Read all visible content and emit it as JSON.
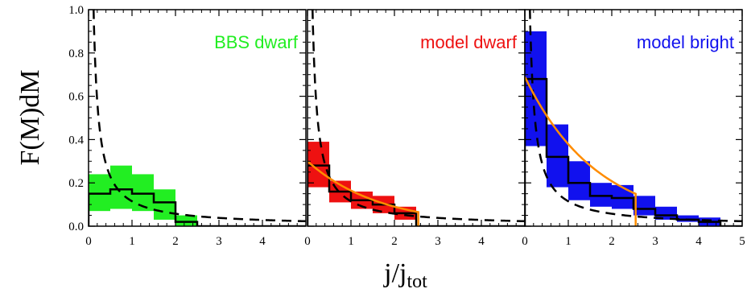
{
  "chart_data": {
    "type": "bar",
    "ylabel": "F(M)dM",
    "xlabel_main": "j/j",
    "xlabel_sub": "tot",
    "ylim": [
      0,
      1.0
    ],
    "yticks": [
      "0.0",
      "0.2",
      "0.4",
      "0.6",
      "0.8",
      "1.0"
    ],
    "yticks_values": [
      0,
      0.2,
      0.4,
      0.6,
      0.8,
      1.0
    ],
    "grid": false,
    "panels": [
      {
        "label": "BBS dwarf",
        "color": "#22ee22",
        "xlim": [
          0,
          5
        ],
        "xticks": [
          "0",
          "1",
          "2",
          "3",
          "4"
        ],
        "xticks_values": [
          0,
          1,
          2,
          3,
          4
        ],
        "bin_width": 0.5,
        "bins": [
          {
            "x": 0.0,
            "value": 0.15,
            "lo": 0.07,
            "hi": 0.24
          },
          {
            "x": 0.5,
            "value": 0.17,
            "lo": 0.08,
            "hi": 0.28
          },
          {
            "x": 1.0,
            "value": 0.15,
            "lo": 0.07,
            "hi": 0.24
          },
          {
            "x": 1.5,
            "value": 0.11,
            "lo": 0.03,
            "hi": 0.17
          },
          {
            "x": 2.0,
            "value": 0.02,
            "lo": 0.0,
            "hi": 0.05
          }
        ],
        "dashed_curve": true
      },
      {
        "label": "model dwarf",
        "color": "#ee1111",
        "xlim": [
          0,
          5
        ],
        "xticks": [
          "0",
          "1",
          "2",
          "3",
          "4"
        ],
        "xticks_values": [
          0,
          1,
          2,
          3,
          4
        ],
        "bin_width": 0.5,
        "bins": [
          {
            "x": 0.0,
            "value": 0.28,
            "lo": 0.18,
            "hi": 0.39
          },
          {
            "x": 0.5,
            "value": 0.16,
            "lo": 0.11,
            "hi": 0.21
          },
          {
            "x": 1.0,
            "value": 0.12,
            "lo": 0.08,
            "hi": 0.16
          },
          {
            "x": 1.5,
            "value": 0.1,
            "lo": 0.06,
            "hi": 0.14
          },
          {
            "x": 2.0,
            "value": 0.06,
            "lo": 0.03,
            "hi": 0.09
          }
        ],
        "fit_a": 0.3,
        "fit_b": 0.6,
        "fit_xmax": 2.55,
        "dashed_curve": true
      },
      {
        "label": "model bright",
        "color": "#1111ee",
        "xlim": [
          0,
          5
        ],
        "xticks": [
          "0",
          "1",
          "2",
          "3",
          "4",
          "5"
        ],
        "xticks_values": [
          0,
          1,
          2,
          3,
          4,
          5
        ],
        "bin_width": 0.5,
        "bins": [
          {
            "x": 0.0,
            "value": 0.68,
            "lo": 0.37,
            "hi": 0.9
          },
          {
            "x": 0.5,
            "value": 0.32,
            "lo": 0.18,
            "hi": 0.47
          },
          {
            "x": 1.0,
            "value": 0.2,
            "lo": 0.12,
            "hi": 0.3
          },
          {
            "x": 1.5,
            "value": 0.14,
            "lo": 0.09,
            "hi": 0.2
          },
          {
            "x": 2.0,
            "value": 0.13,
            "lo": 0.08,
            "hi": 0.19
          },
          {
            "x": 2.5,
            "value": 0.08,
            "lo": 0.05,
            "hi": 0.14
          },
          {
            "x": 3.0,
            "value": 0.05,
            "lo": 0.03,
            "hi": 0.09
          },
          {
            "x": 3.5,
            "value": 0.03,
            "lo": 0.02,
            "hi": 0.05
          },
          {
            "x": 4.0,
            "value": 0.02,
            "lo": 0.0,
            "hi": 0.04
          }
        ],
        "fit_a": 0.69,
        "fit_b": 0.6,
        "fit_xmax": 2.55,
        "dashed_curve": true
      }
    ]
  }
}
